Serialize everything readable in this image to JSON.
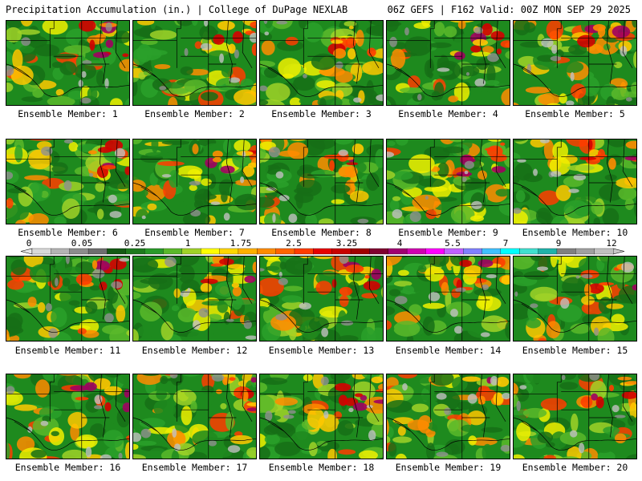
{
  "header": {
    "title": "Precipitation Accumulation (in.) | College of DuPage NEXLAB",
    "run_info": "06Z GEFS | F162 Valid: 00Z MON SEP 29 2025"
  },
  "colorbar": {
    "tick_labels": [
      "0",
      "0.05",
      "0.25",
      "1",
      "1.75",
      "2.5",
      "3.25",
      "4",
      "5.5",
      "7",
      "9",
      "12"
    ],
    "colors": [
      "#d9d9d9",
      "#b4b4b4",
      "#8c8c8c",
      "#6e6e6e",
      "#145a14",
      "#1e7a1e",
      "#2a9a2a",
      "#5ab82a",
      "#a0d228",
      "#ffff00",
      "#ffd700",
      "#ffb000",
      "#ff8c00",
      "#ff6400",
      "#ff3c00",
      "#e60000",
      "#c80000",
      "#a00000",
      "#800030",
      "#a00070",
      "#d000b0",
      "#ff00ff",
      "#c060ff",
      "#8080ff",
      "#40c0ff",
      "#00ffff",
      "#40e0d0",
      "#20b2aa",
      "#808080",
      "#a0a0a0",
      "#c0c0c0"
    ]
  },
  "members": [
    {
      "label": "Ensemble Member: 1"
    },
    {
      "label": "Ensemble Member: 2"
    },
    {
      "label": "Ensemble Member: 3"
    },
    {
      "label": "Ensemble Member: 4"
    },
    {
      "label": "Ensemble Member: 5"
    },
    {
      "label": "Ensemble Member: 6"
    },
    {
      "label": "Ensemble Member: 7"
    },
    {
      "label": "Ensemble Member: 8"
    },
    {
      "label": "Ensemble Member: 9"
    },
    {
      "label": "Ensemble Member: 10"
    },
    {
      "label": "Ensemble Member: 11"
    },
    {
      "label": "Ensemble Member: 12"
    },
    {
      "label": "Ensemble Member: 13"
    },
    {
      "label": "Ensemble Member: 14"
    },
    {
      "label": "Ensemble Member: 15"
    },
    {
      "label": "Ensemble Member: 16"
    },
    {
      "label": "Ensemble Member: 17"
    },
    {
      "label": "Ensemble Member: 18"
    },
    {
      "label": "Ensemble Member: 19"
    },
    {
      "label": "Ensemble Member: 20"
    }
  ]
}
